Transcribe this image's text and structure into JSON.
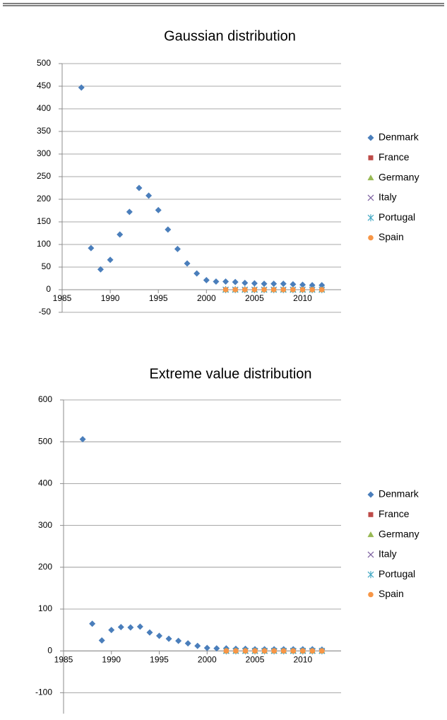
{
  "chart_data": [
    {
      "type": "scatter",
      "title": "Gaussian distribution",
      "x": [
        1987,
        1988,
        1989,
        1990,
        1991,
        1992,
        1993,
        1994,
        1995,
        1996,
        1997,
        1998,
        1999,
        2000,
        2001,
        2002,
        2003,
        2004,
        2005,
        2006,
        2007,
        2008,
        2009,
        2010,
        2011,
        2012
      ],
      "series": [
        {
          "name": "Denmark",
          "color": "#4a7ebb",
          "marker": "diamond",
          "values": [
            447,
            92,
            45,
            66,
            122,
            172,
            225,
            208,
            176,
            133,
            90,
            58,
            36,
            21,
            18,
            18,
            17,
            15,
            14,
            13,
            13,
            13,
            12,
            11,
            10,
            10
          ]
        },
        {
          "name": "France",
          "color": "#be4b48",
          "marker": "square",
          "values": [
            null,
            null,
            null,
            null,
            null,
            null,
            null,
            null,
            null,
            null,
            null,
            null,
            null,
            null,
            null,
            0,
            0,
            0,
            0,
            0,
            0,
            0,
            0,
            0,
            0,
            0
          ]
        },
        {
          "name": "Germany",
          "color": "#98b954",
          "marker": "triangle",
          "values": [
            null,
            null,
            null,
            null,
            null,
            null,
            null,
            null,
            null,
            null,
            null,
            null,
            null,
            null,
            null,
            0,
            0,
            0,
            0,
            0,
            0,
            0,
            0,
            0,
            0,
            0
          ]
        },
        {
          "name": "Italy",
          "color": "#7d60a0",
          "marker": "x",
          "values": [
            null,
            null,
            null,
            null,
            null,
            null,
            null,
            null,
            null,
            null,
            null,
            null,
            null,
            null,
            null,
            0,
            0,
            0,
            0,
            0,
            0,
            0,
            0,
            0,
            0,
            0
          ]
        },
        {
          "name": "Portugal",
          "color": "#46aac5",
          "marker": "star",
          "values": [
            null,
            null,
            null,
            null,
            null,
            null,
            null,
            null,
            null,
            null,
            null,
            null,
            null,
            null,
            null,
            0,
            0,
            0,
            0,
            0,
            0,
            0,
            0,
            0,
            0,
            0
          ]
        },
        {
          "name": "Spain",
          "color": "#f79646",
          "marker": "circle",
          "values": [
            null,
            null,
            null,
            null,
            null,
            null,
            null,
            null,
            null,
            null,
            null,
            null,
            null,
            null,
            null,
            0,
            0,
            0,
            0,
            0,
            0,
            0,
            0,
            0,
            0,
            0
          ]
        }
      ],
      "xlim": [
        1985,
        2014
      ],
      "xticks": [
        1985,
        1990,
        1995,
        2000,
        2005,
        2010
      ],
      "ylim": [
        -50,
        500
      ],
      "yticks": [
        -50,
        0,
        50,
        100,
        150,
        200,
        250,
        300,
        350,
        400,
        450,
        500
      ],
      "grid": true,
      "legend": "right"
    },
    {
      "type": "scatter",
      "title": "Extreme value distribution",
      "x": [
        1987,
        1988,
        1989,
        1990,
        1991,
        1992,
        1993,
        1994,
        1995,
        1996,
        1997,
        1998,
        1999,
        2000,
        2001,
        2002,
        2003,
        2004,
        2005,
        2006,
        2007,
        2008,
        2009,
        2010,
        2011,
        2012
      ],
      "series": [
        {
          "name": "Denmark",
          "color": "#4a7ebb",
          "marker": "diamond",
          "values": [
            506,
            65,
            25,
            50,
            57,
            56,
            58,
            44,
            36,
            29,
            24,
            18,
            12,
            7,
            6,
            6,
            5,
            5,
            4,
            4,
            4,
            4,
            4,
            4,
            4,
            3
          ]
        },
        {
          "name": "France",
          "color": "#be4b48",
          "marker": "square",
          "values": [
            null,
            null,
            null,
            null,
            null,
            null,
            null,
            null,
            null,
            null,
            null,
            null,
            null,
            null,
            null,
            0,
            0,
            0,
            0,
            0,
            0,
            0,
            0,
            0,
            0,
            0
          ]
        },
        {
          "name": "Germany",
          "color": "#98b954",
          "marker": "triangle",
          "values": [
            null,
            null,
            null,
            null,
            null,
            null,
            null,
            null,
            null,
            null,
            null,
            null,
            null,
            null,
            null,
            0,
            0,
            0,
            0,
            0,
            0,
            0,
            0,
            0,
            0,
            0
          ]
        },
        {
          "name": "Italy",
          "color": "#7d60a0",
          "marker": "x",
          "values": [
            null,
            null,
            null,
            null,
            null,
            null,
            null,
            null,
            null,
            null,
            null,
            null,
            null,
            null,
            null,
            0,
            0,
            0,
            0,
            0,
            0,
            0,
            0,
            0,
            0,
            0
          ]
        },
        {
          "name": "Portugal",
          "color": "#46aac5",
          "marker": "star",
          "values": [
            null,
            null,
            null,
            null,
            null,
            null,
            null,
            null,
            null,
            null,
            null,
            null,
            null,
            null,
            null,
            0,
            0,
            0,
            0,
            0,
            0,
            0,
            0,
            0,
            0,
            0
          ]
        },
        {
          "name": "Spain",
          "color": "#f79646",
          "marker": "circle",
          "values": [
            null,
            null,
            null,
            null,
            null,
            null,
            null,
            null,
            null,
            null,
            null,
            null,
            null,
            null,
            null,
            0,
            0,
            0,
            0,
            0,
            0,
            0,
            0,
            0,
            0,
            0
          ]
        }
      ],
      "xlim": [
        1985,
        2014
      ],
      "xticks": [
        1985,
        1990,
        1995,
        2000,
        2005,
        2010
      ],
      "ylim": [
        -150,
        600
      ],
      "yticks": [
        -100,
        0,
        100,
        200,
        300,
        400,
        500,
        600
      ],
      "grid": true,
      "legend": "right"
    }
  ]
}
